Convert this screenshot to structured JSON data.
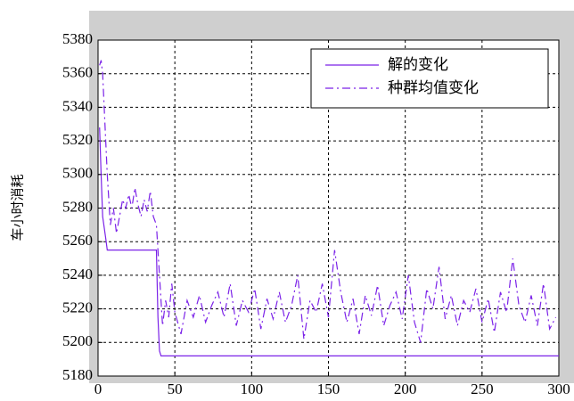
{
  "chart_data": {
    "type": "line",
    "y_label": "车小时消耗",
    "xlim": [
      0,
      300
    ],
    "xticks": [
      0,
      50,
      100,
      150,
      200,
      250,
      300
    ],
    "ylim": [
      5180,
      5380
    ],
    "yticks": [
      5180,
      5200,
      5220,
      5240,
      5260,
      5280,
      5300,
      5320,
      5340,
      5360,
      5380
    ],
    "grid": true,
    "legend": "top-right",
    "series": [
      {
        "name": "解的变化",
        "color": "#7b22e8",
        "style": "solid",
        "x": [
          1,
          2,
          3,
          5,
          6,
          38,
          39,
          40,
          41,
          300
        ],
        "values": [
          5328,
          5300,
          5275,
          5262,
          5255,
          5255,
          5215,
          5195,
          5192,
          5192
        ]
      },
      {
        "name": "种群均值变化",
        "color": "#7b22e8",
        "style": "dashdot",
        "x": [
          1,
          2,
          3,
          4,
          5,
          6,
          7,
          8,
          10,
          12,
          14,
          16,
          18,
          20,
          22,
          24,
          26,
          28,
          30,
          32,
          34,
          36,
          38,
          40,
          42,
          44,
          46,
          48,
          50,
          54,
          58,
          62,
          66,
          70,
          74,
          78,
          82,
          86,
          90,
          94,
          98,
          102,
          106,
          110,
          114,
          118,
          122,
          126,
          130,
          134,
          138,
          142,
          146,
          150,
          154,
          158,
          162,
          166,
          170,
          174,
          178,
          182,
          186,
          190,
          194,
          198,
          202,
          206,
          210,
          214,
          218,
          222,
          226,
          230,
          234,
          238,
          242,
          246,
          250,
          254,
          258,
          262,
          266,
          270,
          274,
          278,
          282,
          286,
          290,
          294,
          298
        ],
        "values": [
          5365,
          5368,
          5360,
          5340,
          5320,
          5300,
          5285,
          5270,
          5280,
          5265,
          5275,
          5285,
          5280,
          5288,
          5280,
          5292,
          5282,
          5275,
          5285,
          5278,
          5290,
          5275,
          5270,
          5240,
          5210,
          5225,
          5215,
          5235,
          5218,
          5205,
          5225,
          5215,
          5228,
          5212,
          5222,
          5230,
          5215,
          5235,
          5210,
          5225,
          5218,
          5232,
          5208,
          5226,
          5214,
          5230,
          5212,
          5222,
          5240,
          5202,
          5225,
          5218,
          5235,
          5215,
          5255,
          5230,
          5212,
          5226,
          5205,
          5228,
          5216,
          5234,
          5210,
          5222,
          5230,
          5214,
          5240,
          5212,
          5200,
          5232,
          5220,
          5245,
          5214,
          5228,
          5210,
          5225,
          5218,
          5232,
          5212,
          5226,
          5206,
          5230,
          5218,
          5250,
          5222,
          5212,
          5228,
          5210,
          5235,
          5208,
          5215
        ]
      }
    ]
  }
}
